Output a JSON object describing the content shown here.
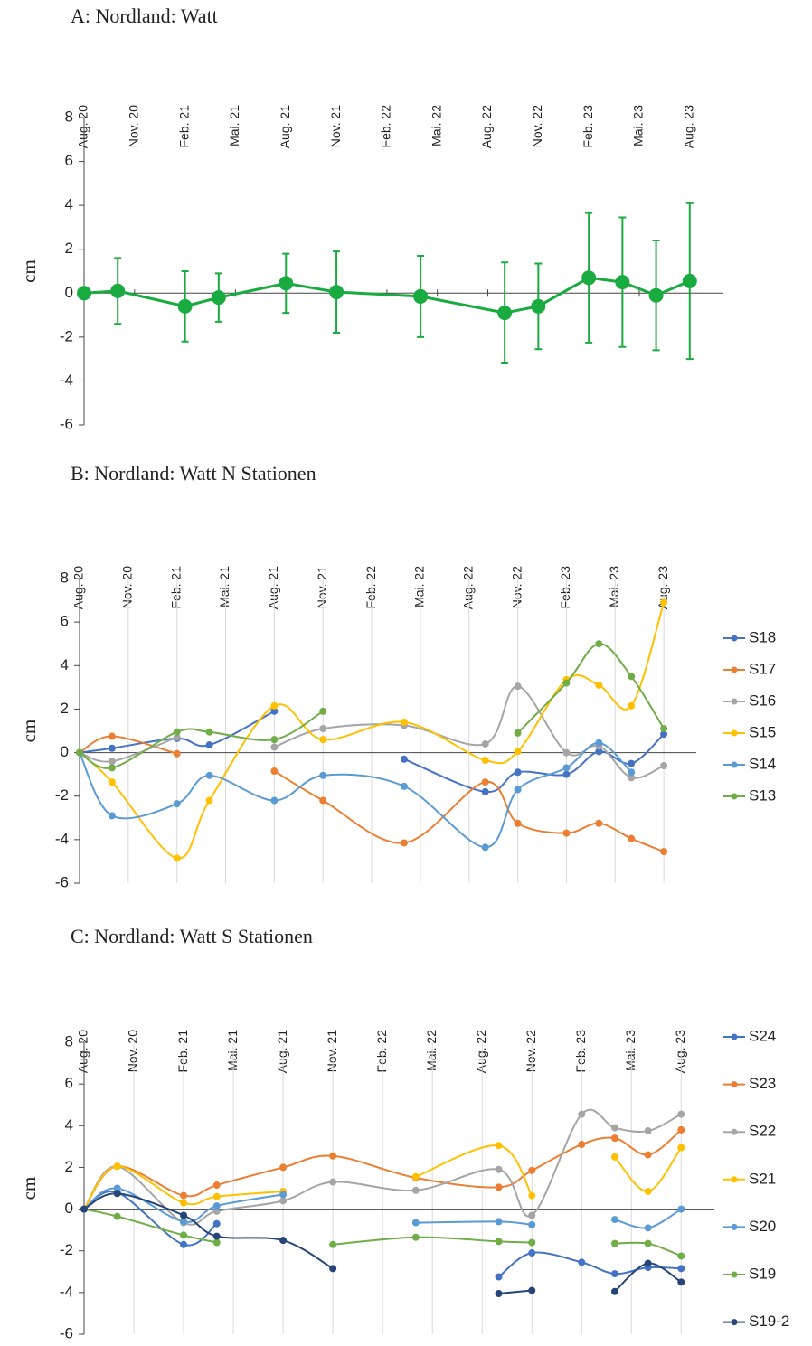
{
  "chart_data": [
    {
      "type": "errorline",
      "title": "A: Nordland: Watt",
      "ylabel": "cm",
      "xlim": [
        "2020-08",
        "2023-10"
      ],
      "xticks": [
        {
          "value": "2020-08",
          "label": "Aug. 20"
        },
        {
          "value": "2020-11",
          "label": "Nov. 20"
        },
        {
          "value": "2021-02",
          "label": "Feb. 21"
        },
        {
          "value": "2021-05",
          "label": "Mai. 21"
        },
        {
          "value": "2021-08",
          "label": "Aug. 21"
        },
        {
          "value": "2021-11",
          "label": "Nov. 21"
        },
        {
          "value": "2022-02",
          "label": "Feb. 22"
        },
        {
          "value": "2022-05",
          "label": "Mai. 22"
        },
        {
          "value": "2022-08",
          "label": "Aug. 22"
        },
        {
          "value": "2022-11",
          "label": "Nov. 22"
        },
        {
          "value": "2023-02",
          "label": "Feb. 23"
        },
        {
          "value": "2023-05",
          "label": "Mai. 23"
        },
        {
          "value": "2023-08",
          "label": "Aug. 23"
        }
      ],
      "ylim": [
        -6,
        8
      ],
      "yticks": [
        -6,
        -4,
        -2,
        0,
        2,
        4,
        6,
        8
      ],
      "grid": false,
      "x": [
        "2020-08",
        "2020-10",
        "2021-02",
        "2021-04",
        "2021-08",
        "2021-11",
        "2022-04",
        "2022-09",
        "2022-11",
        "2023-02",
        "2023-04",
        "2023-06",
        "2023-08"
      ],
      "series": [
        {
          "color": "#1aab40",
          "values": [
            0,
            0.1,
            -0.6,
            -0.2,
            0.45,
            0.05,
            -0.15,
            -0.9,
            -0.6,
            0.7,
            0.5,
            -0.1,
            0.55
          ],
          "errors": [
            0,
            1.5,
            1.6,
            1.1,
            1.35,
            1.85,
            1.85,
            2.3,
            1.95,
            2.95,
            2.95,
            2.5,
            3.55
          ]
        }
      ]
    },
    {
      "type": "line",
      "title": "B: Nordland: Watt N Stationen",
      "ylabel": "cm",
      "xlim": [
        "2020-08",
        "2023-10"
      ],
      "xticks": [
        {
          "value": "2020-08",
          "label": "Aug. 20"
        },
        {
          "value": "2020-11",
          "label": "Nov. 20"
        },
        {
          "value": "2021-02",
          "label": "Feb. 21"
        },
        {
          "value": "2021-05",
          "label": "Mai. 21"
        },
        {
          "value": "2021-08",
          "label": "Aug. 21"
        },
        {
          "value": "2021-11",
          "label": "Nov. 21"
        },
        {
          "value": "2022-02",
          "label": "Feb. 22"
        },
        {
          "value": "2022-05",
          "label": "Mai. 22"
        },
        {
          "value": "2022-08",
          "label": "Aug. 22"
        },
        {
          "value": "2022-11",
          "label": "Nov. 22"
        },
        {
          "value": "2023-02",
          "label": "Feb. 23"
        },
        {
          "value": "2023-05",
          "label": "Mai. 23"
        },
        {
          "value": "2023-08",
          "label": "Aug. 23"
        }
      ],
      "ylim": [
        -6,
        8
      ],
      "yticks": [
        -6,
        -4,
        -2,
        0,
        2,
        4,
        6,
        8
      ],
      "grid": true,
      "legend": "right",
      "smooth": true,
      "x": [
        "2020-08",
        "2020-10",
        "2021-02",
        "2021-04",
        "2021-08",
        "2021-11",
        "2022-04",
        "2022-09",
        "2022-11",
        "2023-02",
        "2023-04",
        "2023-06",
        "2023-08"
      ],
      "series": [
        {
          "name": "S18",
          "color": "#4472c4",
          "values": [
            0,
            0.2,
            0.65,
            0.35,
            1.9,
            null,
            -0.3,
            -1.8,
            -0.9,
            -1.0,
            0.05,
            -0.5,
            0.85
          ]
        },
        {
          "name": "S17",
          "color": "#ed7d31",
          "values": [
            0,
            0.75,
            -0.05,
            null,
            -0.85,
            -2.2,
            -4.15,
            -1.35,
            -3.25,
            -3.7,
            -3.25,
            -3.95,
            -4.55
          ]
        },
        {
          "name": "S16",
          "color": "#a5a5a5",
          "values": [
            0,
            -0.4,
            0.7,
            null,
            0.25,
            1.1,
            1.25,
            0.4,
            3.05,
            0.0,
            0.3,
            -1.15,
            -0.6
          ]
        },
        {
          "name": "S15",
          "color": "#ffc000",
          "values": [
            0,
            -1.35,
            -4.85,
            -2.2,
            2.15,
            0.6,
            1.4,
            -0.35,
            0.05,
            3.35,
            3.1,
            2.15,
            6.9
          ]
        },
        {
          "name": "S14",
          "color": "#5b9bd5",
          "values": [
            0,
            -2.9,
            -2.35,
            -1.05,
            -2.2,
            -1.05,
            -1.55,
            -4.35,
            -1.7,
            -0.7,
            0.45,
            -0.9,
            null
          ]
        },
        {
          "name": "S13",
          "color": "#70ad47",
          "values": [
            0,
            -0.7,
            0.95,
            0.95,
            0.6,
            1.9,
            null,
            null,
            0.9,
            3.2,
            5.0,
            3.5,
            1.1
          ]
        }
      ]
    },
    {
      "type": "line",
      "title": "C: Nordland: Watt S Stationen",
      "ylabel": "cm",
      "xlim": [
        "2020-08",
        "2023-10"
      ],
      "xticks": [
        {
          "value": "2020-08",
          "label": "Aug. 20"
        },
        {
          "value": "2020-11",
          "label": "Nov. 20"
        },
        {
          "value": "2021-02",
          "label": "Feb. 21"
        },
        {
          "value": "2021-05",
          "label": "Mai. 21"
        },
        {
          "value": "2021-08",
          "label": "Aug. 21"
        },
        {
          "value": "2021-11",
          "label": "Nov. 21"
        },
        {
          "value": "2022-02",
          "label": "Feb. 22"
        },
        {
          "value": "2022-05",
          "label": "Mai. 22"
        },
        {
          "value": "2022-08",
          "label": "Aug. 22"
        },
        {
          "value": "2022-11",
          "label": "Nov. 22"
        },
        {
          "value": "2023-02",
          "label": "Feb. 23"
        },
        {
          "value": "2023-05",
          "label": "Mai. 23"
        },
        {
          "value": "2023-08",
          "label": "Aug. 23"
        }
      ],
      "ylim": [
        -6,
        8
      ],
      "yticks": [
        -6,
        -4,
        -2,
        0,
        2,
        4,
        6,
        8
      ],
      "grid": true,
      "legend": "right",
      "smooth": true,
      "x": [
        "2020-08",
        "2020-10",
        "2021-02",
        "2021-04",
        "2021-08",
        "2021-11",
        "2022-04",
        "2022-09",
        "2022-11",
        "2023-02",
        "2023-04",
        "2023-06",
        "2023-08"
      ],
      "series": [
        {
          "name": "S24",
          "color": "#4472c4",
          "values": [
            0,
            0.8,
            -1.7,
            -0.7,
            null,
            null,
            null,
            -3.25,
            -2.1,
            -2.55,
            -3.1,
            -2.8,
            -2.85
          ]
        },
        {
          "name": "S23",
          "color": "#ed7d31",
          "values": [
            0,
            2.05,
            0.65,
            1.15,
            2.0,
            2.55,
            1.5,
            1.05,
            1.85,
            3.1,
            3.4,
            2.6,
            3.8
          ]
        },
        {
          "name": "S22",
          "color": "#a5a5a5",
          "values": [
            0,
            2.05,
            -0.65,
            -0.1,
            0.4,
            1.3,
            0.9,
            1.9,
            -0.3,
            4.55,
            3.9,
            3.75,
            4.55
          ]
        },
        {
          "name": "S21",
          "color": "#ffc000",
          "values": [
            0,
            2.05,
            0.3,
            0.6,
            0.85,
            null,
            1.55,
            3.05,
            0.65,
            null,
            2.5,
            0.85,
            2.95
          ]
        },
        {
          "name": "S20",
          "color": "#5b9bd5",
          "values": [
            0,
            1.0,
            -0.6,
            0.15,
            0.7,
            null,
            -0.65,
            -0.6,
            -0.75,
            null,
            -0.5,
            -0.9,
            0.0
          ]
        },
        {
          "name": "S19",
          "color": "#70ad47",
          "values": [
            0,
            -0.35,
            -1.25,
            -1.6,
            null,
            -1.7,
            -1.35,
            -1.55,
            -1.6,
            null,
            -1.65,
            -1.65,
            -2.25
          ]
        },
        {
          "name": "S19-2",
          "color": "#264478",
          "values": [
            0,
            0.75,
            -0.3,
            -1.3,
            -1.5,
            -2.85,
            null,
            -4.05,
            -3.9,
            null,
            -3.95,
            -2.6,
            -3.5
          ]
        }
      ]
    }
  ]
}
